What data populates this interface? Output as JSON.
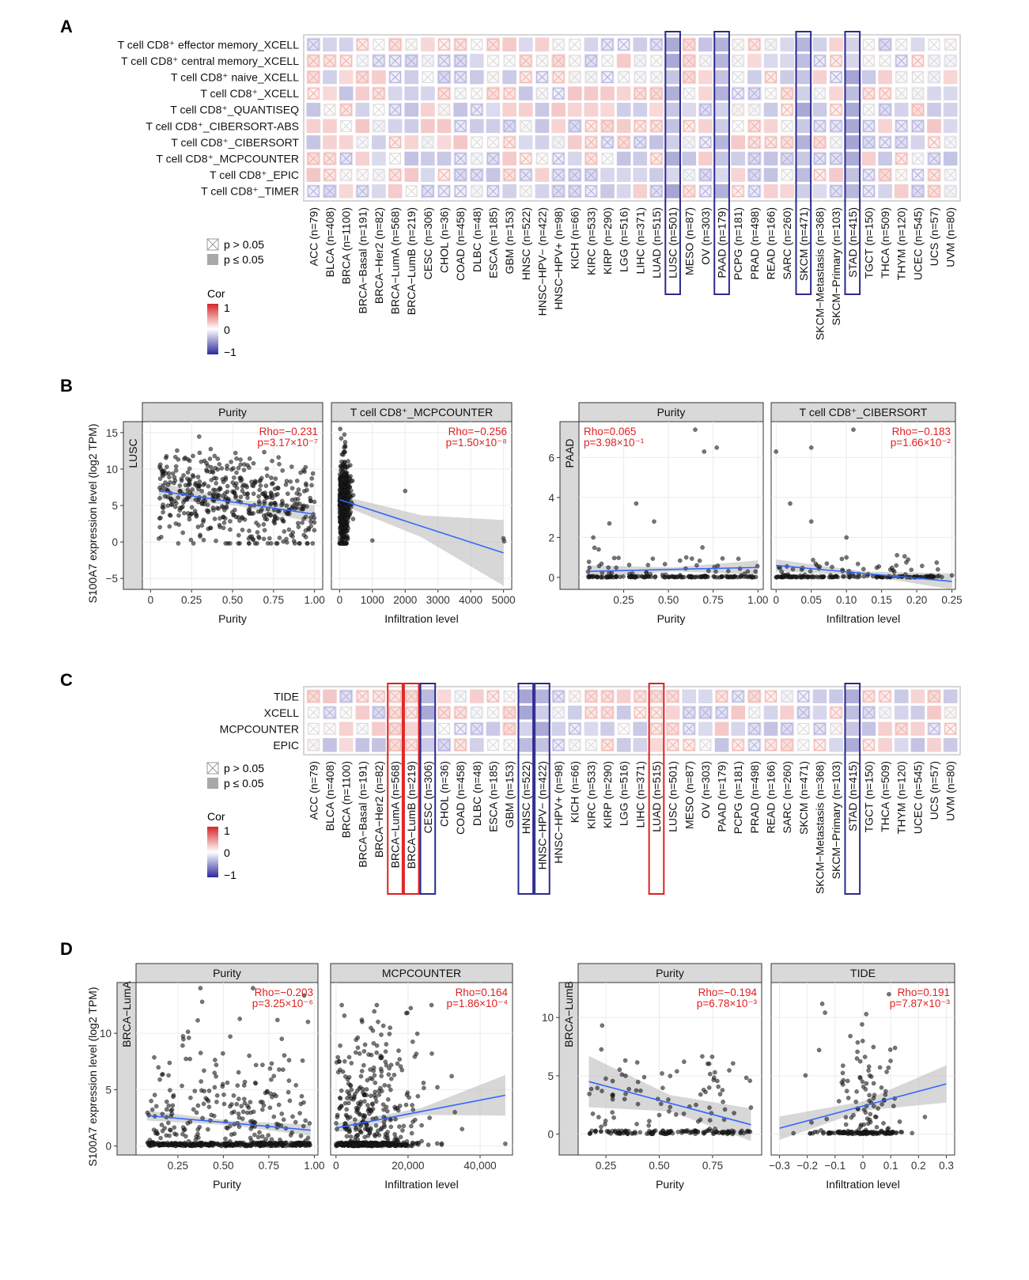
{
  "figure": {
    "panel_labels": [
      "A",
      "B",
      "C",
      "D"
    ],
    "legend": {
      "ns_label": "p > 0.05",
      "sig_label": "p ≤ 0.05",
      "cor_title": "Cor",
      "cor_ticks": [
        "1",
        "0",
        "−1"
      ]
    },
    "colors": {
      "positive": "#d62728",
      "negative": "#2c2a9c",
      "highlight_blue": "#2b2a8c",
      "highlight_red": "#e02020",
      "fit_line": "#3366ff",
      "ci_band": "#bdbdbd"
    }
  },
  "chart_data": [
    {
      "panel": "A",
      "type": "heatmap",
      "rows": [
        "T cell CD8⁺ effector memory_XCELL",
        "T cell CD8⁺ central memory_XCELL",
        "T cell CD8⁺ naive_XCELL",
        "T cell CD8⁺_XCELL",
        "T cell CD8⁺_QUANTISEQ",
        "T cell CD8⁺_CIBERSORT-ABS",
        "T cell CD8⁺_CIBERSORT",
        "T cell CD8⁺_MCPCOUNTER",
        "T cell CD8⁺_EPIC",
        "T cell CD8⁺_TIMER"
      ],
      "columns": [
        "ACC (n=79)",
        "BLCA (n=408)",
        "BRCA (n=1100)",
        "BRCA−Basal (n=191)",
        "BRCA−Her2 (n=82)",
        "BRCA−LumA (n=568)",
        "BRCA−LumB (n=219)",
        "CESC (n=306)",
        "CHOL (n=36)",
        "COAD (n=458)",
        "DLBC (n=48)",
        "ESCA (n=185)",
        "GBM (n=153)",
        "HNSC (n=522)",
        "HNSC−HPV− (n=422)",
        "HNSC−HPV+ (n=98)",
        "KICH (n=66)",
        "KIRC (n=533)",
        "KIRP (n=290)",
        "LGG (n=516)",
        "LIHC (n=371)",
        "LUAD (n=515)",
        "LUSC (n=501)",
        "MESO (n=87)",
        "OV (n=303)",
        "PAAD (n=179)",
        "PCPG (n=181)",
        "PRAD (n=498)",
        "READ (n=166)",
        "SARC (n=260)",
        "SKCM (n=471)",
        "SKCM−Metastasis (n=368)",
        "SKCM−Primary (n=103)",
        "STAD (n=415)",
        "TGCT (n=150)",
        "THCA (n=509)",
        "THYM (n=120)",
        "UCEC (n=545)",
        "UCS (n=57)",
        "UVM (n=80)"
      ],
      "highlight_blue": [
        "LUSC (n=501)",
        "PAAD (n=179)",
        "SKCM (n=471)",
        "STAD (n=415)"
      ],
      "highlight_red": []
    },
    {
      "panel": "B",
      "type": "scatter",
      "ylabel": "S100A7 expression level (log2 TPM)",
      "groups": [
        {
          "strip_label": "LUSC",
          "yticks": [
            "15",
            "10",
            "5",
            "0",
            "−5"
          ],
          "ylim": [
            -6.5,
            16.5
          ],
          "facets": [
            {
              "title": "Purity",
              "xlabel": "Purity",
              "xlim": [
                -0.05,
                1.05
              ],
              "xticks": [
                "0",
                "0.25",
                "0.50",
                "0.75",
                "1.00"
              ],
              "xtick_values": [
                0,
                0.25,
                0.5,
                0.75,
                1.0
              ],
              "rho": "Rho=−0.231",
              "p": "p=3.17×10⁻⁷",
              "annot_side": "right",
              "fit": {
                "x": [
                  0.05,
                  1.0
                ],
                "y": [
                  7.0,
                  3.8
                ]
              },
              "ci": [
                1.1,
                0.4,
                1.2
              ],
              "points": {
                "kind": "uniform",
                "n": 480,
                "x0": 0.05,
                "x1": 1.0,
                "ymean": [
                  7.0,
                  3.8
                ],
                "ysd": 3.0,
                "ymin": -0.2,
                "ymax": 15.5
              }
            },
            {
              "title": "T cell CD8⁺_MCPCOUNTER",
              "xlabel": "Infiltration level",
              "xlim": [
                -250,
                5250
              ],
              "xticks": [
                "0",
                "1000",
                "2000",
                "3000",
                "4000",
                "5000"
              ],
              "xtick_values": [
                0,
                1000,
                2000,
                3000,
                4000,
                5000
              ],
              "rho": "Rho=−0.256",
              "p": "p=1.50×10⁻⁸",
              "annot_side": "right",
              "fit": {
                "x": [
                  0,
                  5000
                ],
                "y": [
                  5.8,
                  -1.5
                ]
              },
              "ci": [
                0.6,
                1.5,
                4.5
              ],
              "points": {
                "kind": "clustered",
                "n": 430,
                "cx": 120,
                "cspread": 110,
                "ymean": 5.2,
                "ysd": 3.2,
                "ymin": -0.2,
                "ymax": 15.5,
                "extra": [
                  [
                    1000,
                    0.2
                  ],
                  [
                    2000,
                    7.0
                  ],
                  [
                    5000,
                    0.5
                  ],
                  [
                    5020,
                    0.1
                  ]
                ]
              }
            }
          ]
        },
        {
          "strip_label": "PAAD",
          "yticks": [
            "6",
            "4",
            "2",
            "0"
          ],
          "ylim": [
            -0.6,
            7.8
          ],
          "facets": [
            {
              "title": "Purity",
              "xlabel": "Purity",
              "xlim": [
                0.0,
                1.03
              ],
              "xticks": [
                "0.25",
                "0.50",
                "0.75",
                "1.00"
              ],
              "xtick_values": [
                0.25,
                0.5,
                0.75,
                1.0
              ],
              "rho": "Rho=0.065",
              "p": "p=3.98×10⁻¹",
              "annot_side": "left",
              "fit": {
                "x": [
                  0.05,
                  1.0
                ],
                "y": [
                  0.3,
                  0.5
                ]
              },
              "ci": [
                0.3,
                0.1,
                0.35
              ],
              "points": {
                "kind": "skewed",
                "n": 175,
                "x0": 0.05,
                "x1": 1.0,
                "extra": [
                  [
                    0.65,
                    7.4
                  ],
                  [
                    0.7,
                    6.3
                  ],
                  [
                    0.77,
                    6.5
                  ],
                  [
                    0.32,
                    3.7
                  ],
                  [
                    0.42,
                    2.8
                  ],
                  [
                    0.17,
                    2.7
                  ],
                  [
                    0.08,
                    2.0
                  ],
                  [
                    0.69,
                    1.5
                  ],
                  [
                    0.11,
                    1.4
                  ],
                  [
                    0.6,
                    1.0
                  ]
                ]
              }
            },
            {
              "title": "T cell CD8⁺_CIBERSORT",
              "xlabel": "Infiltration level",
              "xlim": [
                -0.007,
                0.255
              ],
              "xticks": [
                "0",
                "0.05",
                "0.10",
                "0.15",
                "0.20",
                "0.25"
              ],
              "xtick_values": [
                0,
                0.05,
                0.1,
                0.15,
                0.2,
                0.25
              ],
              "rho": "Rho=−0.183",
              "p": "p=1.66×10⁻²",
              "annot_side": "right",
              "fit": {
                "x": [
                  0.0,
                  0.25
                ],
                "y": [
                  0.6,
                  -0.2
                ]
              },
              "ci": [
                0.3,
                0.1,
                0.4
              ],
              "points": {
                "kind": "zeroheavy",
                "n": 175,
                "x0": 0.0,
                "x1": 0.24,
                "extra": [
                  [
                    0.11,
                    7.4
                  ],
                  [
                    0.05,
                    6.5
                  ],
                  [
                    0.0,
                    6.3
                  ],
                  [
                    0.02,
                    3.7
                  ],
                  [
                    0.05,
                    2.8
                  ],
                  [
                    0.1,
                    2.0
                  ],
                  [
                    0.1,
                    1.0
                  ],
                  [
                    0.23,
                    0.4
                  ],
                  [
                    0.25,
                    0.1
                  ]
                ]
              }
            }
          ]
        }
      ]
    },
    {
      "panel": "C",
      "type": "heatmap",
      "rows": [
        "TIDE",
        "XCELL",
        "MCPCOUNTER",
        "EPIC"
      ],
      "columns": [
        "ACC (n=79)",
        "BLCA (n=408)",
        "BRCA (n=1100)",
        "BRCA−Basal (n=191)",
        "BRCA−Her2 (n=82)",
        "BRCA−LumA (n=568)",
        "BRCA−LumB (n=219)",
        "CESC (n=306)",
        "CHOL (n=36)",
        "COAD (n=458)",
        "DLBC (n=48)",
        "ESCA (n=185)",
        "GBM (n=153)",
        "HNSC (n=522)",
        "HNSC−HPV− (n=422)",
        "HNSC−HPV+ (n=98)",
        "KICH (n=66)",
        "KIRC (n=533)",
        "KIRP (n=290)",
        "LGG (n=516)",
        "LIHC (n=371)",
        "LUAD (n=515)",
        "LUSC (n=501)",
        "MESO (n=87)",
        "OV (n=303)",
        "PAAD (n=179)",
        "PCPG (n=181)",
        "PRAD (n=498)",
        "READ (n=166)",
        "SARC (n=260)",
        "SKCM (n=471)",
        "SKCM−Metastasis (n=368)",
        "SKCM−Primary (n=103)",
        "STAD (n=415)",
        "TGCT (n=150)",
        "THCA (n=509)",
        "THYM (n=120)",
        "UCEC (n=545)",
        "UCS (n=57)",
        "UVM (n=80)"
      ],
      "highlight_blue": [
        "CESC (n=306)",
        "HNSC (n=522)",
        "HNSC−HPV− (n=422)",
        "STAD (n=415)"
      ],
      "highlight_red": [
        "BRCA−LumA (n=568)",
        "BRCA−LumB (n=219)",
        "LUAD (n=515)"
      ]
    },
    {
      "panel": "D",
      "type": "scatter",
      "ylabel": "S100A7 expression level (log2 TPM)",
      "groups": [
        {
          "strip_label": "BRCA−LumA",
          "yticks": [
            "10",
            "5",
            "0"
          ],
          "ylim": [
            -0.8,
            14.5
          ],
          "facets": [
            {
              "title": "Purity",
              "xlabel": "Purity",
              "xlim": [
                0.02,
                1.02
              ],
              "xticks": [
                "0.25",
                "0.50",
                "0.75",
                "1.00"
              ],
              "xtick_values": [
                0.25,
                0.5,
                0.75,
                1.0
              ],
              "rho": "Rho=−0.203",
              "p": "p=3.25×10⁻⁶",
              "annot_side": "right",
              "fit": {
                "x": [
                  0.08,
                  0.98
                ],
                "y": [
                  2.7,
                  1.4
                ]
              },
              "ci": [
                0.45,
                0.2,
                0.5
              ],
              "points": {
                "kind": "bottomheavy",
                "n": 560,
                "x0": 0.08,
                "x1": 0.98,
                "ymax": 14.0
              }
            },
            {
              "title": "MCPCOUNTER",
              "xlabel": "Infiltration level",
              "xlim": [
                -1500,
                49000
              ],
              "xticks": [
                "0",
                "20,000",
                "40,000"
              ],
              "xtick_values": [
                0,
                20000,
                40000
              ],
              "rho": "Rho=0.164",
              "p": "p=1.86×10⁻⁴",
              "annot_side": "right",
              "fit": {
                "x": [
                  0,
                  47000
                ],
                "y": [
                  1.6,
                  4.5
                ]
              },
              "ci": [
                0.4,
                0.3,
                1.8
              ],
              "points": {
                "kind": "bottomclustered",
                "n": 560,
                "cx": 9000,
                "cspread": 7000,
                "ymax": 12.5,
                "extra": [
                  [
                    33000,
                    3.0
                  ],
                  [
                    35000,
                    1.5
                  ],
                  [
                    47000,
                    0.2
                  ],
                  [
                    26000,
                    2.5
                  ]
                ]
              }
            }
          ]
        },
        {
          "strip_label": "BRCA−LumB",
          "yticks": [
            "10",
            "5",
            "0"
          ],
          "ylim": [
            -1.8,
            13.0
          ],
          "facets": [
            {
              "title": "Purity",
              "xlabel": "Purity",
              "xlim": [
                0.12,
                0.98
              ],
              "xticks": [
                "0.25",
                "0.50",
                "0.75"
              ],
              "xtick_values": [
                0.25,
                0.5,
                0.75
              ],
              "rho": "Rho=−0.194",
              "p": "p=6.78×10⁻³",
              "annot_side": "right",
              "fit": {
                "x": [
                  0.17,
                  0.93
                ],
                "y": [
                  4.5,
                  0.8
                ]
              },
              "ci": [
                2.2,
                0.7,
                1.4
              ],
              "points": {
                "kind": "bottomheavy",
                "n": 210,
                "x0": 0.17,
                "x1": 0.93,
                "ymax": 12.0
              }
            },
            {
              "title": "TIDE",
              "xlabel": "Infiltration level",
              "xlim": [
                -0.33,
                0.33
              ],
              "xticks": [
                "−0.3",
                "−0.2",
                "−0.1",
                "0",
                "0.1",
                "0.2",
                "0.3"
              ],
              "xtick_values": [
                -0.3,
                -0.2,
                -0.1,
                0,
                0.1,
                0.2,
                0.3
              ],
              "rho": "Rho=0.191",
              "p": "p=7.87×10⁻³",
              "annot_side": "right",
              "fit": {
                "x": [
                  -0.3,
                  0.3
                ],
                "y": [
                  0.5,
                  4.3
                ]
              },
              "ci": [
                1.0,
                0.4,
                1.6
              ],
              "points": {
                "kind": "centered",
                "n": 210,
                "x0": -0.28,
                "x1": 0.3,
                "ymax": 12.0
              }
            }
          ]
        }
      ]
    }
  ]
}
